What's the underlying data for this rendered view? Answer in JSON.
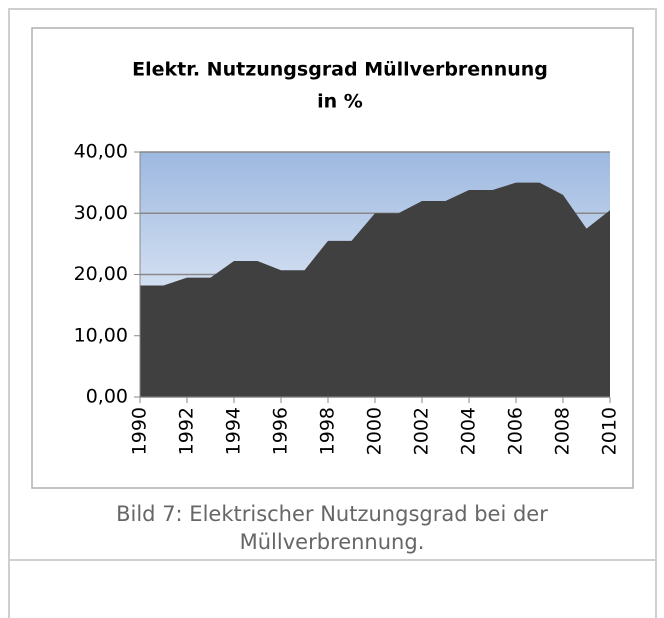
{
  "chart_data": {
    "type": "area",
    "title": [
      "Elektr. Nutzungsgrad Müllverbrennung",
      "in %"
    ],
    "x": [
      1990,
      1991,
      1992,
      1993,
      1994,
      1995,
      1996,
      1997,
      1998,
      1999,
      2000,
      2001,
      2002,
      2003,
      2004,
      2005,
      2006,
      2007,
      2008,
      2009,
      2010
    ],
    "values": [
      18.2,
      18.2,
      19.5,
      19.5,
      22.2,
      22.2,
      20.7,
      20.7,
      25.5,
      25.5,
      30.0,
      30.0,
      32.0,
      32.0,
      33.8,
      33.8,
      35.0,
      35.0,
      33.0,
      27.5,
      30.5
    ],
    "color": "#404040",
    "xlim": [
      1990,
      2010
    ],
    "xticks": [
      1990,
      1992,
      1994,
      1996,
      1998,
      2000,
      2002,
      2004,
      2006,
      2008,
      2010
    ],
    "ylim": [
      0,
      40
    ],
    "yticks": [
      {
        "value": 0,
        "label": "0,00"
      },
      {
        "value": 10,
        "label": "10,00"
      },
      {
        "value": 20,
        "label": "20,00"
      },
      {
        "value": 30,
        "label": "30,00"
      },
      {
        "value": 40,
        "label": "40,00"
      }
    ],
    "grid": true
  },
  "caption": [
    "Bild 7: Elektrischer Nutzungsgrad bei der",
    "Müllverbrennung."
  ]
}
